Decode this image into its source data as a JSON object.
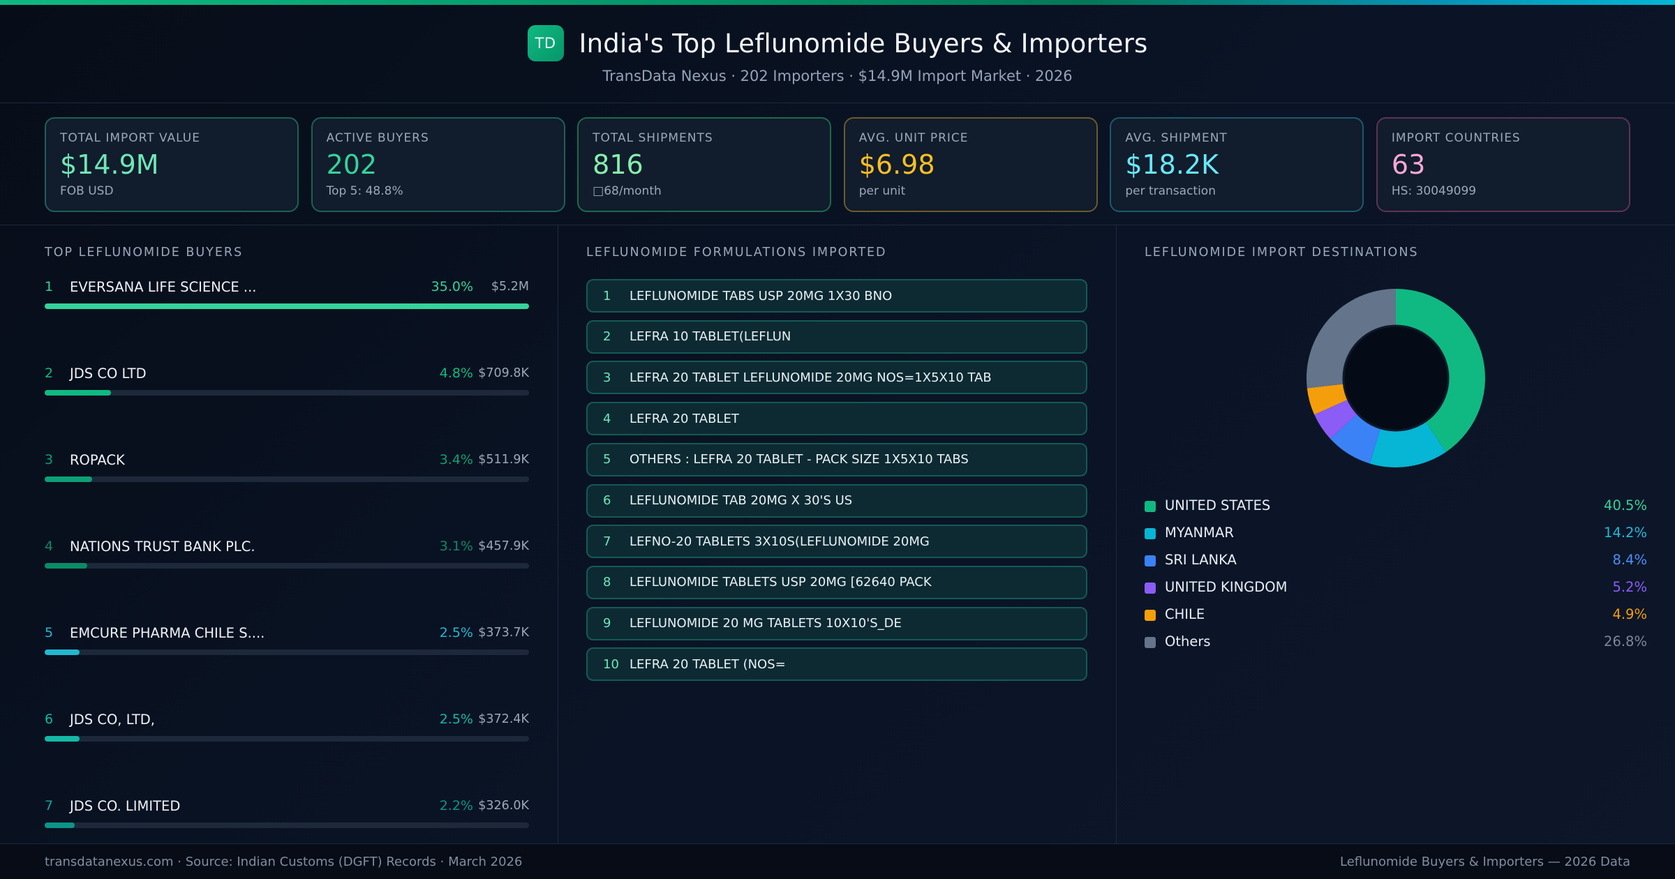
{
  "header": {
    "logo_text": "TD",
    "title": "India's Top Leflunomide Buyers & Importers",
    "subtitle": "TransData Nexus · 202 Importers · $14.9M Import Market · 2026"
  },
  "kpis": [
    {
      "label": "TOTAL IMPORT VALUE",
      "value": "$14.9M",
      "sub": "FOB USD",
      "color": "#6ee7b7",
      "border": "#1b6154"
    },
    {
      "label": "ACTIVE BUYERS",
      "value": "202",
      "sub": "Top 5: 48.8%",
      "color": "#34d399",
      "border": "#1b6154"
    },
    {
      "label": "TOTAL SHIPMENTS",
      "value": "816",
      "sub": "□68/month",
      "color": "#86efac",
      "border": "#1b6a4c"
    },
    {
      "label": "AVG. UNIT PRICE",
      "value": "$6.98",
      "sub": "per unit",
      "color": "#fbbf24",
      "border": "#6b5a2a"
    },
    {
      "label": "AVG. SHIPMENT",
      "value": "$18.2K",
      "sub": "per transaction",
      "color": "#67e8f9",
      "border": "#1a5a6b"
    },
    {
      "label": "IMPORT COUNTRIES",
      "value": "63",
      "sub": "HS: 30049099",
      "color": "#f9a8d4",
      "border": "#5e3253"
    }
  ],
  "buyers": {
    "title": "TOP LEFLUNOMIDE BUYERS",
    "items": [
      {
        "rank": "1",
        "name": "EVERSANA LIFE SCIENCE ...",
        "pct": "35.0%",
        "value": "$5.2M",
        "bar": 100,
        "color": "#34d399",
        "rank_color": "#34d399"
      },
      {
        "rank": "2",
        "name": "JDS CO LTD",
        "pct": "4.8%",
        "value": "$709.8K",
        "bar": 13.7,
        "color": "#10b981",
        "rank_color": "#10b981"
      },
      {
        "rank": "3",
        "name": "ROPACK",
        "pct": "3.4%",
        "value": "$511.9K",
        "bar": 9.8,
        "color": "#0e9f74",
        "rank_color": "#0e9f74"
      },
      {
        "rank": "4",
        "name": "NATIONS TRUST BANK PLC.",
        "pct": "3.1%",
        "value": "$457.9K",
        "bar": 8.8,
        "color": "#0b8a67",
        "rank_color": "#0b8a67"
      },
      {
        "rank": "5",
        "name": "EMCURE PHARMA CHILE S....",
        "pct": "2.5%",
        "value": "$373.7K",
        "bar": 7.2,
        "color": "#22b8cf",
        "rank_color": "#22b8cf"
      },
      {
        "rank": "6",
        "name": "JDS CO, LTD,",
        "pct": "2.5%",
        "value": "$372.4K",
        "bar": 7.2,
        "color": "#14b8a6",
        "rank_color": "#14b8a6"
      },
      {
        "rank": "7",
        "name": "JDS CO. LIMITED",
        "pct": "2.2%",
        "value": "$326.0K",
        "bar": 6.2,
        "color": "#0d9488",
        "rank_color": "#14a394"
      }
    ]
  },
  "formulations": {
    "title": "LEFLUNOMIDE FORMULATIONS IMPORTED",
    "items": [
      {
        "num": "1",
        "text": "LEFLUNOMIDE TABS USP 20MG 1X30 BNO"
      },
      {
        "num": "2",
        "text": "LEFRA 10 TABLET(LEFLUN"
      },
      {
        "num": "3",
        "text": "LEFRA 20 TABLET LEFLUNOMIDE 20MG NOS=1X5X10 TAB"
      },
      {
        "num": "4",
        "text": "LEFRA 20 TABLET"
      },
      {
        "num": "5",
        "text": "OTHERS : LEFRA 20 TABLET - PACK SIZE 1X5X10 TABS"
      },
      {
        "num": "6",
        "text": "LEFLUNOMIDE TAB 20MG X 30'S US"
      },
      {
        "num": "7",
        "text": "LEFNO-20 TABLETS 3X10S(LEFLUNOMIDE 20MG"
      },
      {
        "num": "8",
        "text": "LEFLUNOMIDE TABLETS USP 20MG [62640 PACK"
      },
      {
        "num": "9",
        "text": "LEFLUNOMIDE 20 MG TABLETS 10X10'S_DE"
      },
      {
        "num": "10",
        "text": "LEFRA 20 TABLET (NOS="
      }
    ]
  },
  "destinations": {
    "title": "LEFLUNOMIDE IMPORT DESTINATIONS",
    "items": [
      {
        "name": "UNITED STATES",
        "pct": "40.5%",
        "value": 40.5,
        "color": "#10b981",
        "text_color": "#34d399"
      },
      {
        "name": "MYANMAR",
        "pct": "14.2%",
        "value": 14.2,
        "color": "#06b6d4",
        "text_color": "#22b8d8"
      },
      {
        "name": "SRI LANKA",
        "pct": "8.4%",
        "value": 8.4,
        "color": "#3b82f6",
        "text_color": "#4f8ef7"
      },
      {
        "name": "UNITED KINGDOM",
        "pct": "5.2%",
        "value": 5.2,
        "color": "#8b5cf6",
        "text_color": "#8b5cf6"
      },
      {
        "name": "CHILE",
        "pct": "4.9%",
        "value": 4.9,
        "color": "#f59e0b",
        "text_color": "#f59e0b"
      },
      {
        "name": "Others",
        "pct": "26.8%",
        "value": 26.8,
        "color": "#64748b",
        "text_color": "#7c8798"
      }
    ]
  },
  "chart_data": {
    "type": "pie",
    "title": "LEFLUNOMIDE IMPORT DESTINATIONS",
    "categories": [
      "UNITED STATES",
      "MYANMAR",
      "SRI LANKA",
      "UNITED KINGDOM",
      "CHILE",
      "Others"
    ],
    "values": [
      40.5,
      14.2,
      8.4,
      5.2,
      4.9,
      26.8
    ],
    "colors": [
      "#10b981",
      "#06b6d4",
      "#3b82f6",
      "#8b5cf6",
      "#f59e0b",
      "#64748b"
    ],
    "donut": true,
    "legend_position": "bottom"
  },
  "footer": {
    "left": "transdatanexus.com · Source: Indian Customs (DGFT) Records · March 2026",
    "right": "Leflunomide Buyers & Importers — 2026 Data"
  }
}
